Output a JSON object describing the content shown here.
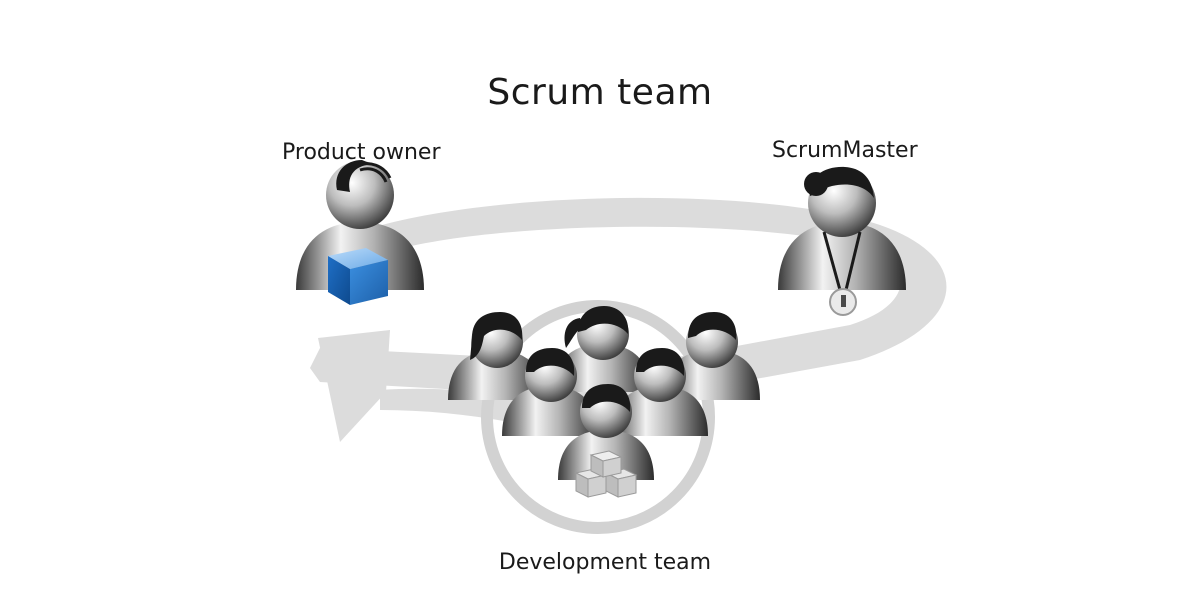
{
  "diagram": {
    "title": "Scrum team",
    "roles": {
      "product_owner": "Product owner",
      "scrum_master": "ScrumMaster",
      "development_team": "Development team"
    }
  },
  "colors": {
    "cycle_arrow": "#dcdcdc",
    "dev_circle": "#d2d2d2",
    "hair": "#1a1a1a",
    "cube_blue": "#2a7fd4",
    "grey_boxes": "#c8c8c8"
  },
  "icons": [
    "cycle-arrow-icon",
    "person-icon",
    "blue-cube-icon",
    "whistle-icon",
    "grey-boxes-icon"
  ]
}
